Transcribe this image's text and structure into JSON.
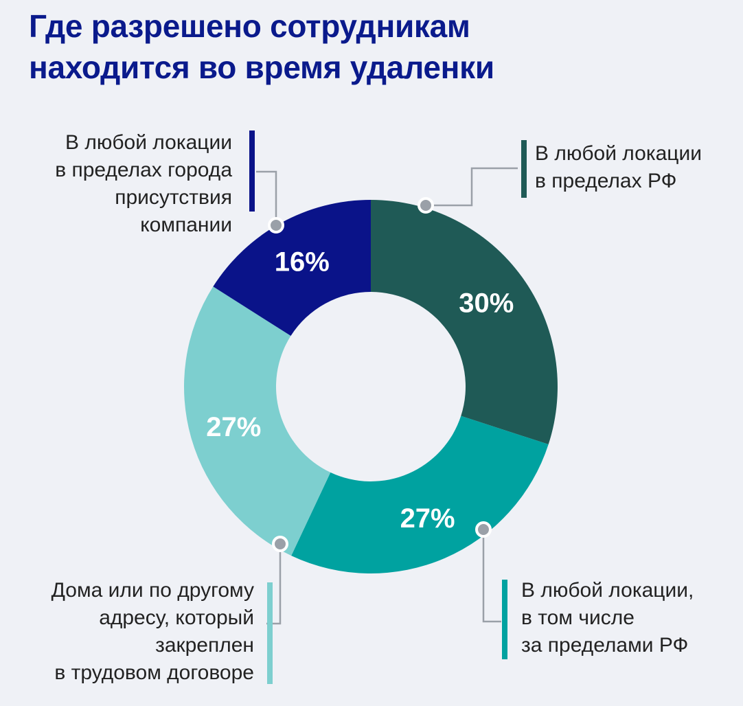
{
  "title": [
    "Где разрешено сотрудникам",
    "находится во время удаленки"
  ],
  "chart_data": {
    "type": "pie",
    "donut": true,
    "title": "Где разрешено сотрудникам находится во время удаленки",
    "slices": [
      {
        "label": [
          "В любой локации",
          "в пределах РФ"
        ],
        "value": 30,
        "display": "30%",
        "color": "#1f5a56"
      },
      {
        "label": [
          "В любой локации,",
          "в том числе",
          "за пределами РФ"
        ],
        "value": 27,
        "display": "27%",
        "color": "#00a2a0"
      },
      {
        "label": [
          "Дома или по другому",
          "адресу, который",
          "закреплен",
          "в трудовом договоре"
        ],
        "value": 27,
        "display": "27%",
        "color": "#7dcfcf"
      },
      {
        "label": [
          "В любой локации",
          "в пределах города",
          "присутствия",
          "компании"
        ],
        "value": 16,
        "display": "16%",
        "color": "#0a1389"
      }
    ]
  }
}
